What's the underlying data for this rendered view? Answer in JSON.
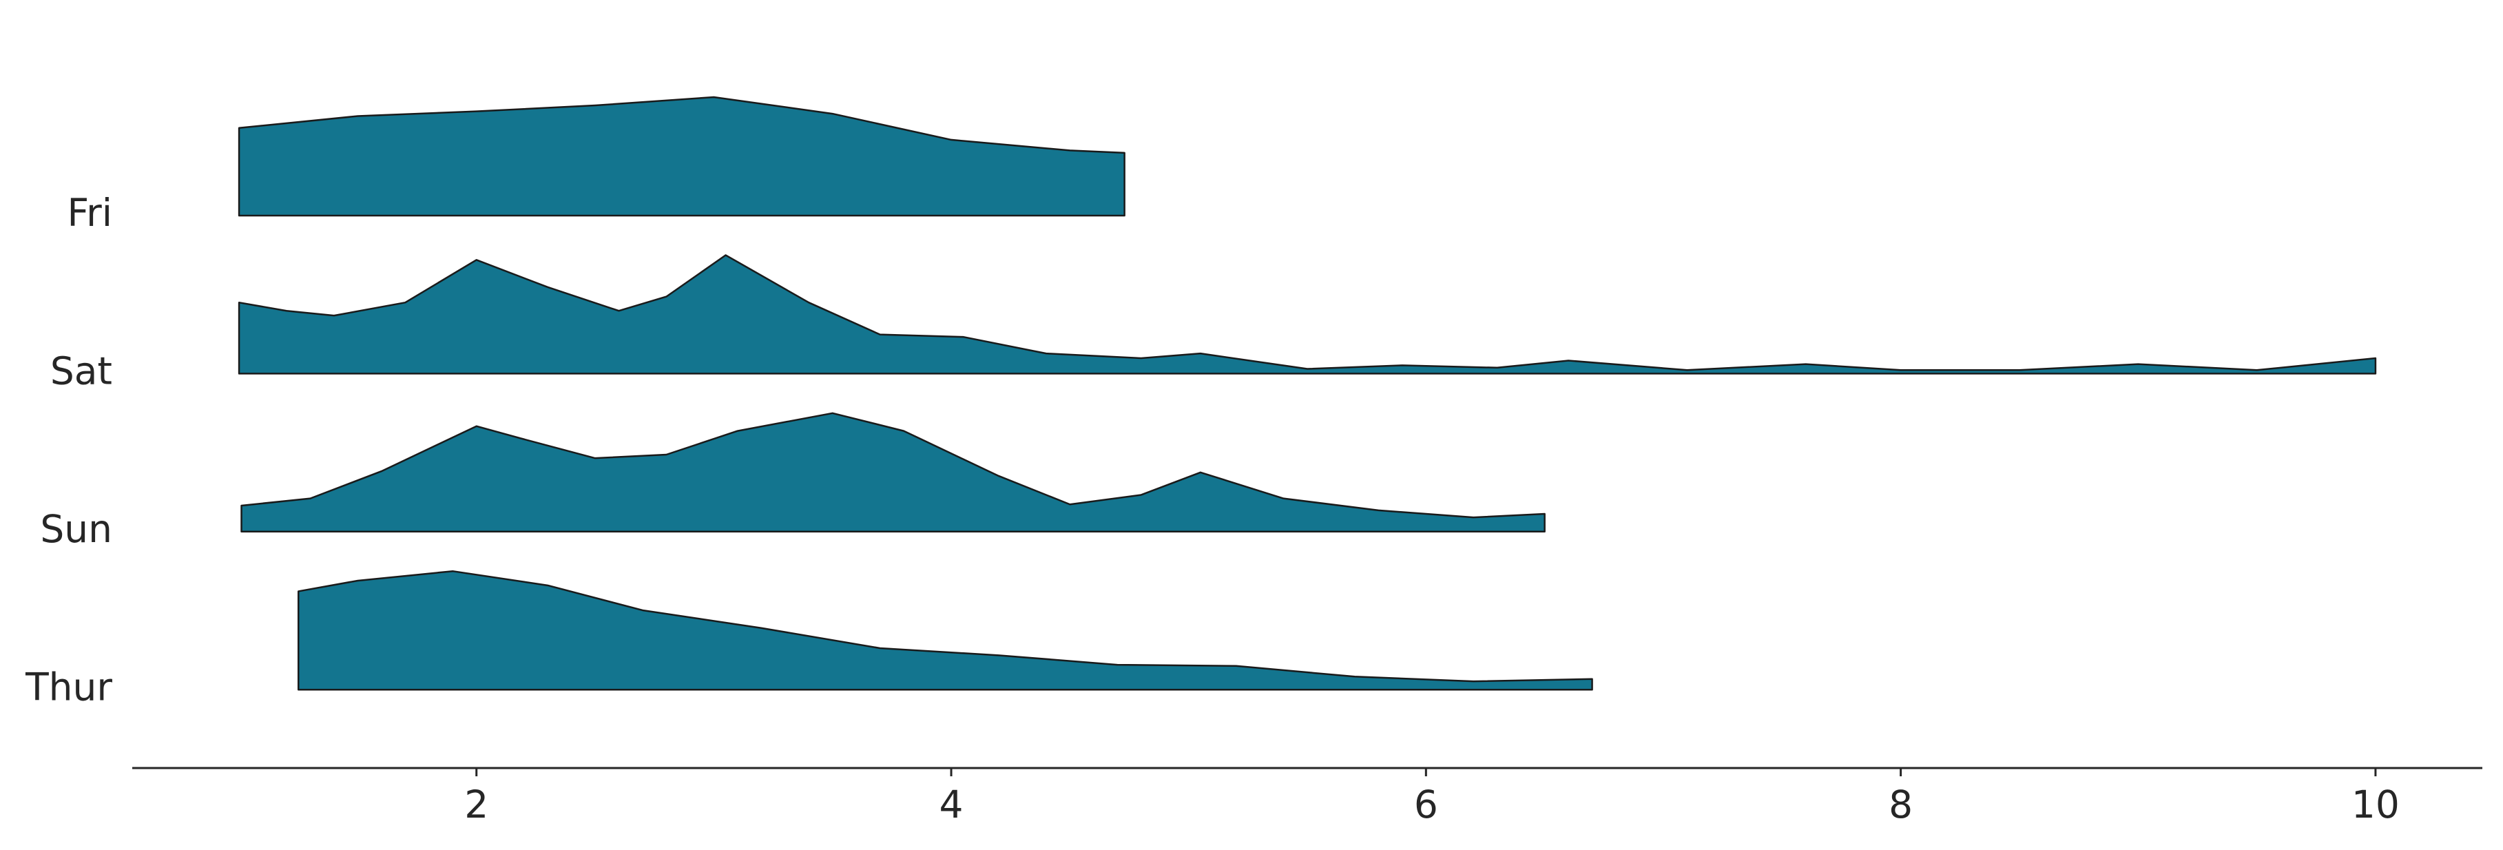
{
  "chart_data": {
    "type": "ridgeline",
    "categories": [
      "Fri",
      "Sat",
      "Sun",
      "Thur"
    ],
    "color": "#13758f",
    "xlim": [
      0.55,
      10.45
    ],
    "xticks": [
      2,
      4,
      6,
      8,
      10
    ],
    "ylim": [
      0,
      1
    ],
    "ridges": [
      {
        "x": [
          1.0,
          1.5,
          2.0,
          2.5,
          3.0,
          3.5,
          4.0,
          4.5,
          4.73
        ],
        "values": [
          0.74,
          0.84,
          0.88,
          0.93,
          1.0,
          0.86,
          0.64,
          0.55,
          0.53
        ]
      },
      {
        "x": [
          1.0,
          1.2,
          1.4,
          1.7,
          2.0,
          2.3,
          2.6,
          2.8,
          3.05,
          3.4,
          3.7,
          4.05,
          4.4,
          4.8,
          5.05,
          5.5,
          5.9,
          6.3,
          6.6,
          7.1,
          7.6,
          8.0,
          8.5,
          9.0,
          9.5,
          10.0
        ],
        "values": [
          0.6,
          0.53,
          0.49,
          0.6,
          0.96,
          0.73,
          0.53,
          0.65,
          1.0,
          0.6,
          0.33,
          0.31,
          0.17,
          0.13,
          0.17,
          0.04,
          0.07,
          0.05,
          0.11,
          0.03,
          0.08,
          0.03,
          0.03,
          0.08,
          0.03,
          0.13
        ]
      },
      {
        "x": [
          1.01,
          1.3,
          1.6,
          2.0,
          2.2,
          2.5,
          2.8,
          3.1,
          3.5,
          3.8,
          4.2,
          4.5,
          4.8,
          5.05,
          5.4,
          5.8,
          6.2,
          6.5
        ],
        "values": [
          0.22,
          0.28,
          0.51,
          0.89,
          0.78,
          0.62,
          0.65,
          0.85,
          1.0,
          0.85,
          0.47,
          0.23,
          0.31,
          0.5,
          0.28,
          0.18,
          0.12,
          0.15
        ]
      },
      {
        "x": [
          1.25,
          1.5,
          1.9,
          2.3,
          2.7,
          3.2,
          3.7,
          4.2,
          4.7,
          5.2,
          5.7,
          6.2,
          6.7
        ],
        "values": [
          0.83,
          0.92,
          1.0,
          0.88,
          0.67,
          0.52,
          0.35,
          0.29,
          0.21,
          0.2,
          0.11,
          0.07,
          0.09
        ]
      }
    ]
  }
}
